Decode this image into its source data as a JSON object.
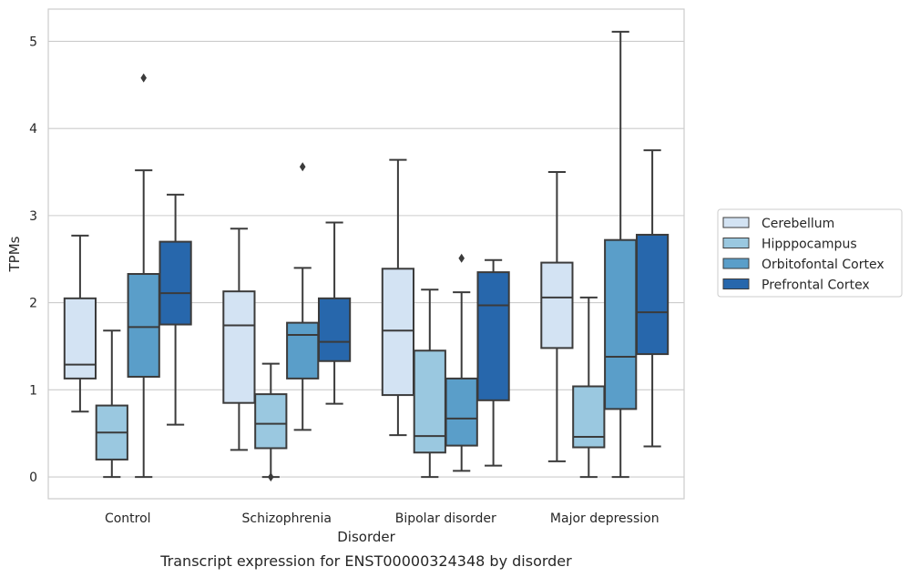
{
  "chart_data": {
    "type": "box",
    "caption": "Transcript expression for ENST00000324348 by disorder",
    "xlabel": "Disorder",
    "ylabel": "TPMs",
    "ylim": [
      -0.25,
      5.37
    ],
    "yticks": [
      "0",
      "1",
      "2",
      "3",
      "4",
      "5"
    ],
    "grid": "horizontal",
    "legend_position": "right",
    "categories": [
      "Control",
      "Schizophrenia",
      "Bipolar disorder",
      "Major depression"
    ],
    "series": [
      {
        "name": "Cerebellum",
        "color": "#d3e3f3",
        "boxes": [
          {
            "whisker_low": 0.75,
            "q1": 1.13,
            "median": 1.29,
            "q3": 2.05,
            "whisker_high": 2.77,
            "outliers": []
          },
          {
            "whisker_low": 0.31,
            "q1": 0.85,
            "median": 1.74,
            "q3": 2.13,
            "whisker_high": 2.85,
            "outliers": []
          },
          {
            "whisker_low": 0.48,
            "q1": 0.94,
            "median": 1.68,
            "q3": 2.39,
            "whisker_high": 3.64,
            "outliers": []
          },
          {
            "whisker_low": 0.18,
            "q1": 1.48,
            "median": 2.06,
            "q3": 2.46,
            "whisker_high": 3.5,
            "outliers": []
          }
        ]
      },
      {
        "name": "Hipppocampus",
        "color": "#9ac8e0",
        "boxes": [
          {
            "whisker_low": 0.0,
            "q1": 0.2,
            "median": 0.51,
            "q3": 0.82,
            "whisker_high": 1.68,
            "outliers": []
          },
          {
            "whisker_low": 0.0,
            "q1": 0.33,
            "median": 0.61,
            "q3": 0.95,
            "whisker_high": 1.3,
            "outliers": [
              0.0
            ]
          },
          {
            "whisker_low": 0.0,
            "q1": 0.28,
            "median": 0.47,
            "q3": 1.45,
            "whisker_high": 2.15,
            "outliers": []
          },
          {
            "whisker_low": 0.0,
            "q1": 0.34,
            "median": 0.46,
            "q3": 1.04,
            "whisker_high": 2.06,
            "outliers": []
          }
        ]
      },
      {
        "name": "Orbitofontal Cortex",
        "color": "#5a9ec9",
        "boxes": [
          {
            "whisker_low": 0.0,
            "q1": 1.15,
            "median": 1.72,
            "q3": 2.33,
            "whisker_high": 3.52,
            "outliers": [
              4.58
            ]
          },
          {
            "whisker_low": 0.54,
            "q1": 1.13,
            "median": 1.63,
            "q3": 1.77,
            "whisker_high": 2.4,
            "outliers": [
              3.56
            ]
          },
          {
            "whisker_low": 0.07,
            "q1": 0.36,
            "median": 0.67,
            "q3": 1.13,
            "whisker_high": 2.12,
            "outliers": [
              2.51
            ]
          },
          {
            "whisker_low": 0.0,
            "q1": 0.78,
            "median": 1.38,
            "q3": 2.72,
            "whisker_high": 5.11,
            "outliers": []
          }
        ]
      },
      {
        "name": "Prefrontal Cortex",
        "color": "#2767ac",
        "boxes": [
          {
            "whisker_low": 0.6,
            "q1": 1.75,
            "median": 2.11,
            "q3": 2.7,
            "whisker_high": 3.24,
            "outliers": []
          },
          {
            "whisker_low": 0.84,
            "q1": 1.33,
            "median": 1.55,
            "q3": 2.05,
            "whisker_high": 2.92,
            "outliers": []
          },
          {
            "whisker_low": 0.13,
            "q1": 0.88,
            "median": 1.97,
            "q3": 2.35,
            "whisker_high": 2.49,
            "outliers": []
          },
          {
            "whisker_low": 0.35,
            "q1": 1.41,
            "median": 1.89,
            "q3": 2.78,
            "whisker_high": 3.75,
            "outliers": []
          }
        ]
      }
    ]
  }
}
